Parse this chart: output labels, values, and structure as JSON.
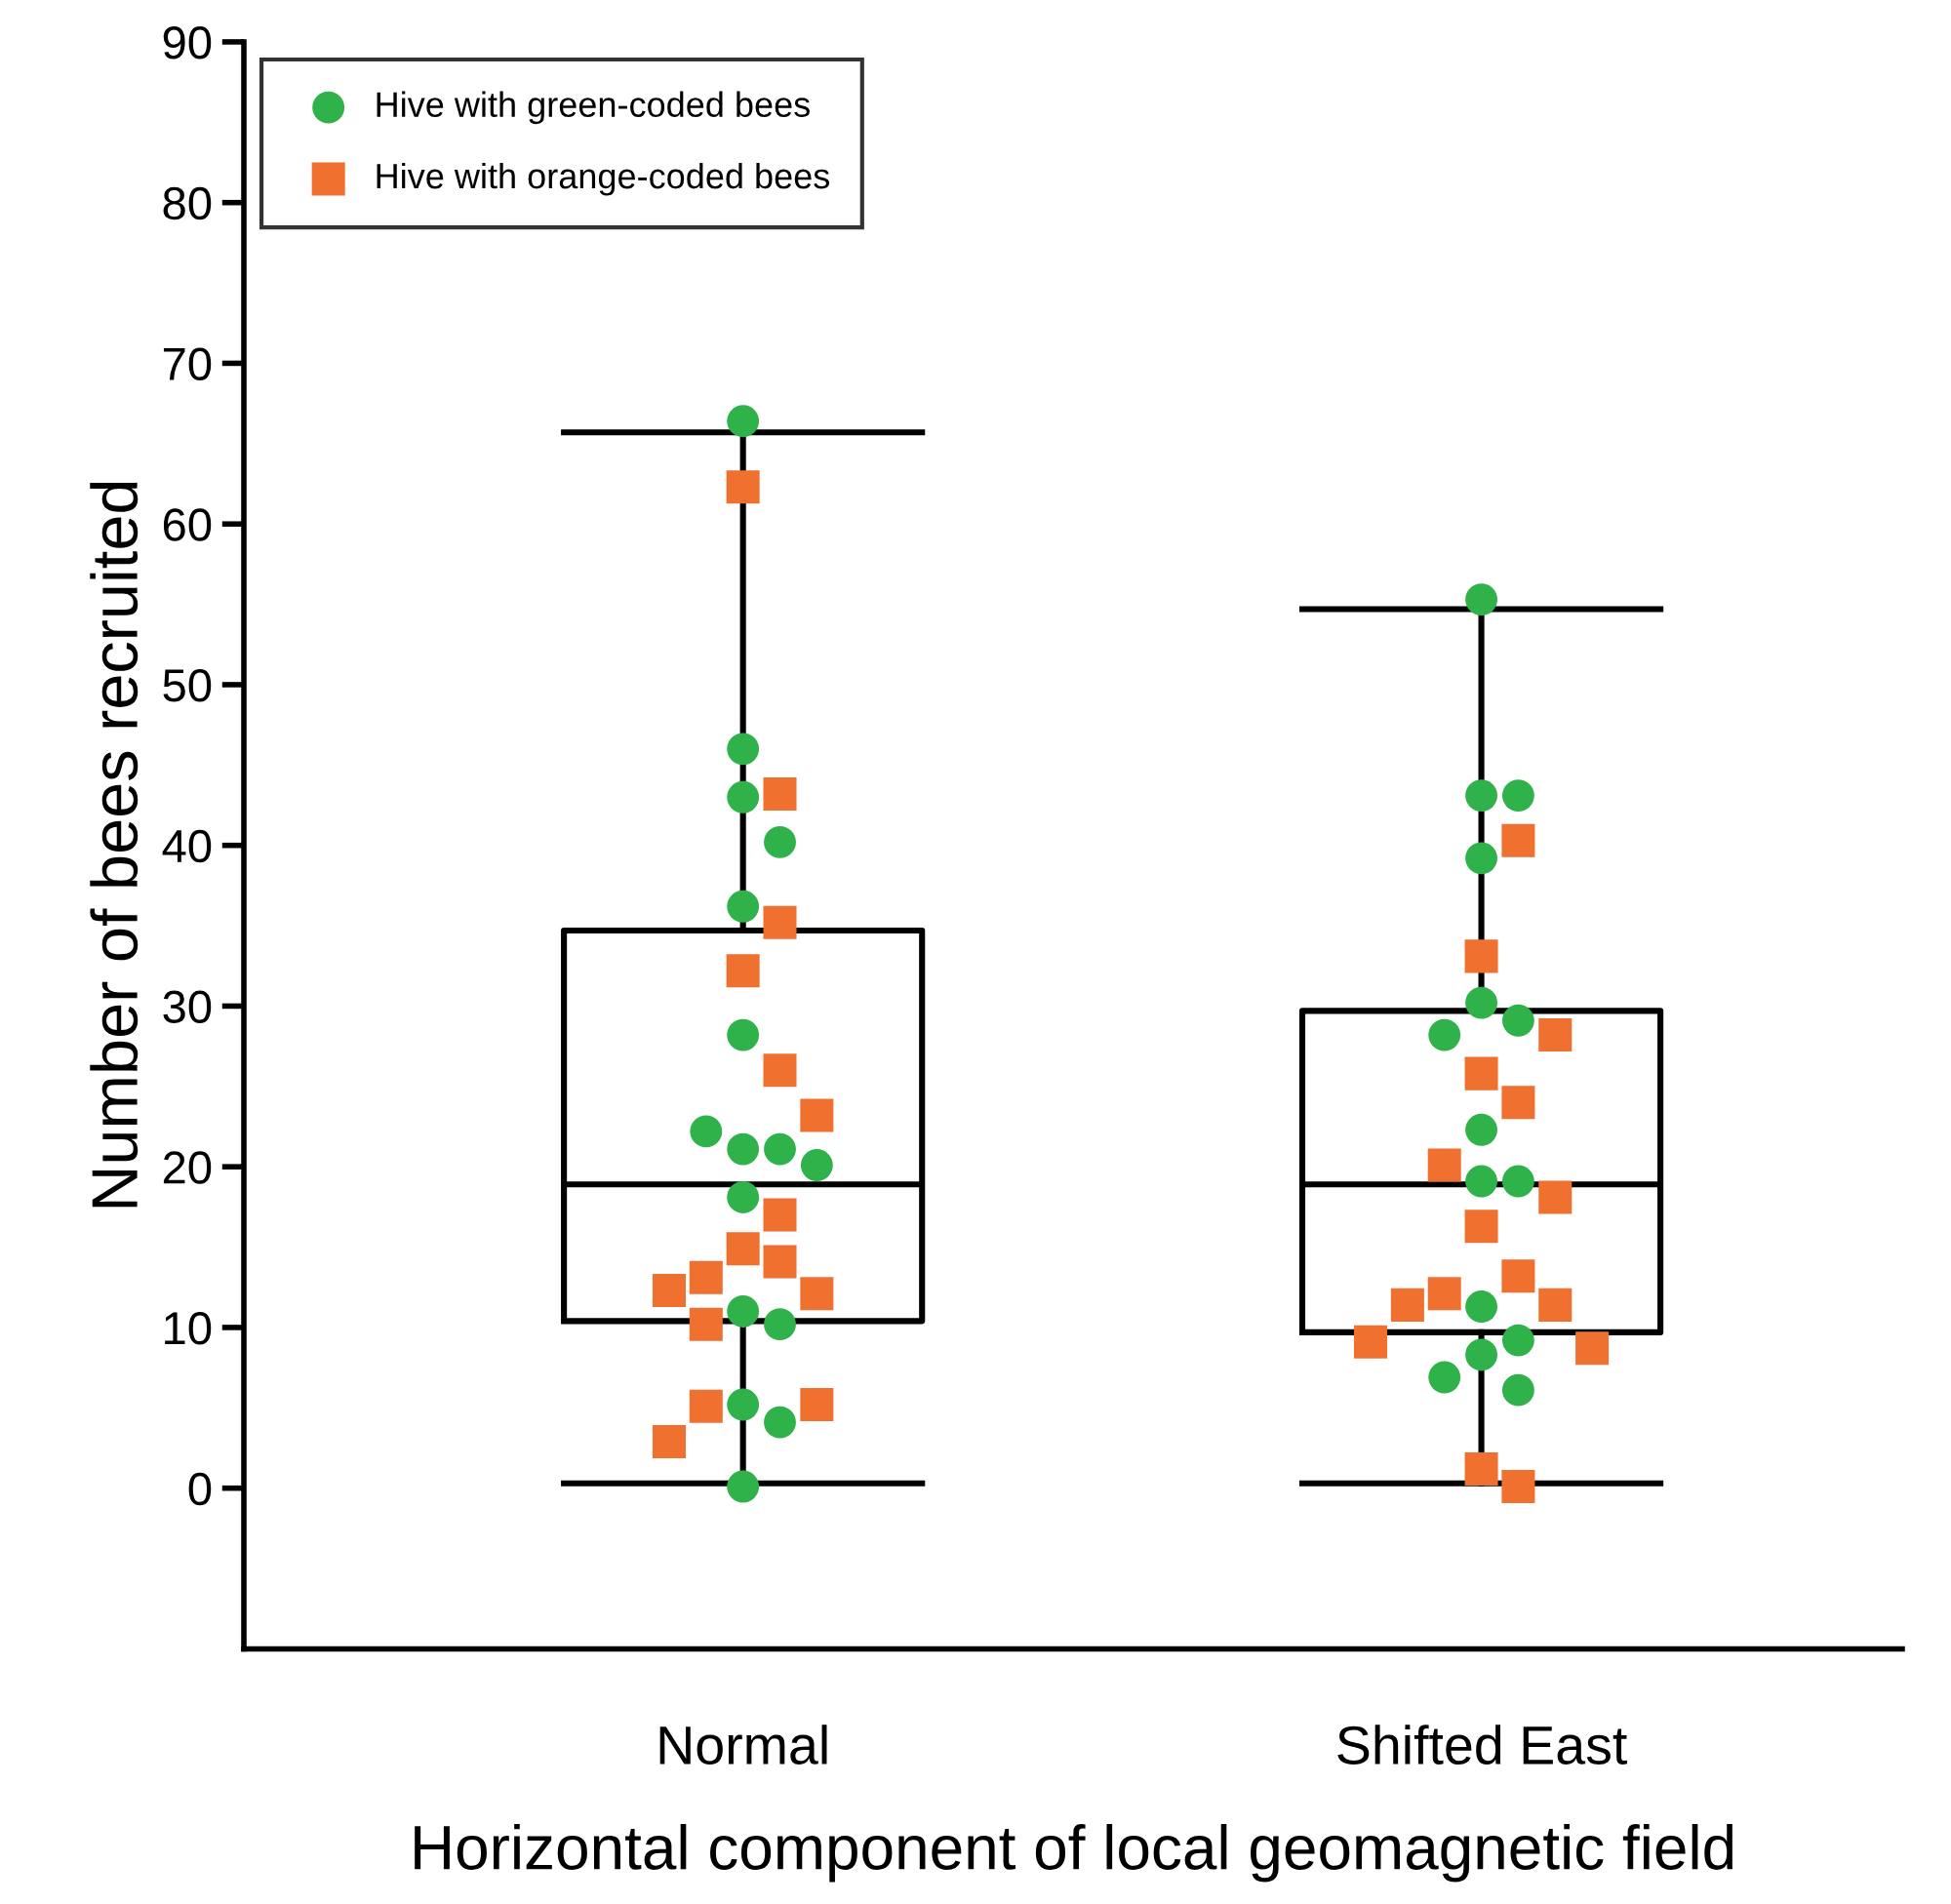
{
  "chart_data": {
    "type": "box",
    "xlabel": "Horizontal component of local geomagnetic field",
    "ylabel": "Number of bees recruited",
    "categories": [
      "Normal",
      "Shifted East"
    ],
    "boxes": [
      {
        "low": 0.3,
        "q1": 10.4,
        "median": 18.9,
        "q3": 34.7,
        "high": 65.7
      },
      {
        "low": 0.3,
        "q1": 9.7,
        "median": 18.9,
        "q3": 29.7,
        "high": 54.7
      }
    ],
    "ylim": [
      -10,
      90
    ],
    "yticks": [
      0,
      10,
      20,
      30,
      40,
      50,
      60,
      70,
      80,
      90
    ],
    "grid": false,
    "legend": "top left",
    "series": [
      {
        "type": "scatter",
        "name": "Hive with green-coded bees",
        "color": "#2fb24a",
        "marker": "circle",
        "x": [
          "Normal",
          "Normal",
          "Normal",
          "Normal",
          "Normal",
          "Normal",
          "Normal",
          "Normal",
          "Normal",
          "Normal",
          "Normal",
          "Normal",
          "Normal",
          "Normal",
          "Normal",
          "Normal",
          "Shifted East",
          "Shifted East",
          "Shifted East",
          "Shifted East",
          "Shifted East",
          "Shifted East",
          "Shifted East",
          "Shifted East",
          "Shifted East",
          "Shifted East",
          "Shifted East",
          "Shifted East",
          "Shifted East",
          "Shifted East",
          "Shifted East"
        ],
        "values": [
          66.4,
          46.0,
          43.0,
          40.2,
          36.2,
          28.2,
          21.1,
          21.1,
          22.2,
          20.1,
          18.1,
          11.0,
          10.2,
          5.2,
          4.1,
          0.1,
          55.3,
          43.1,
          43.1,
          39.2,
          30.2,
          29.1,
          28.2,
          22.3,
          19.1,
          19.1,
          11.3,
          9.2,
          8.3,
          6.9,
          6.1
        ]
      },
      {
        "type": "scatter",
        "name": "Hive with orange-coded bees",
        "color": "#f07030",
        "marker": "square",
        "x": [
          "Normal",
          "Normal",
          "Normal",
          "Normal",
          "Normal",
          "Normal",
          "Normal",
          "Normal",
          "Normal",
          "Normal",
          "Normal",
          "Normal",
          "Normal",
          "Normal",
          "Normal",
          "Normal",
          "Shifted East",
          "Shifted East",
          "Shifted East",
          "Shifted East",
          "Shifted East",
          "Shifted East",
          "Shifted East",
          "Shifted East",
          "Shifted East",
          "Shifted East",
          "Shifted East",
          "Shifted East",
          "Shifted East",
          "Shifted East",
          "Shifted East",
          "Shifted East"
        ],
        "values": [
          62.3,
          43.2,
          35.2,
          32.2,
          26.0,
          23.2,
          17.0,
          14.9,
          14.1,
          13.1,
          12.1,
          12.3,
          10.2,
          5.1,
          5.2,
          2.9,
          40.3,
          33.1,
          28.2,
          24.0,
          25.8,
          20.1,
          18.1,
          16.3,
          13.2,
          12.1,
          11.4,
          11.4,
          8.7,
          9.1,
          1.2,
          0.1
        ]
      }
    ]
  }
}
